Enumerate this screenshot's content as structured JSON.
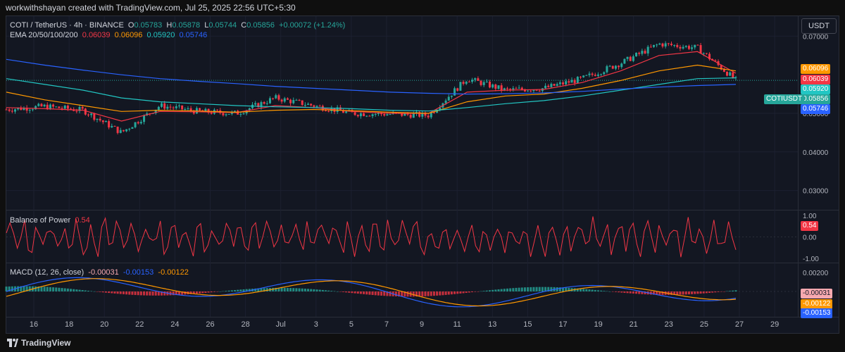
{
  "header": {
    "attribution": "workwithshayan created with TradingView.com, Jul 25, 2025 22:56 UTC+5:30"
  },
  "legend": {
    "symbol": "COTI / TetherUS · 4h · BINANCE",
    "open_label": "O",
    "open": "0.05783",
    "high_label": "H",
    "high": "0.05878",
    "low_label": "L",
    "low": "0.05744",
    "close_label": "C",
    "close": "0.05856",
    "change": "+0.00072 (+1.24%)",
    "ema_label": "EMA 20/50/100/200",
    "ema20": "0.06039",
    "ema50": "0.06096",
    "ema100": "0.05920",
    "ema200": "0.05746"
  },
  "currency_button": "USDT",
  "price_axis": {
    "ticks": [
      "0.07000",
      "0.05000",
      "0.04000",
      "0.03000"
    ],
    "tags": [
      {
        "value": "0.06096",
        "color": "#ff9800"
      },
      {
        "value": "0.06039",
        "color": "#f23645"
      },
      {
        "value": "0.05920",
        "color": "#22c6c3"
      },
      {
        "value": "0.05856",
        "color": "#26a69a"
      },
      {
        "value": "0.05746",
        "color": "#2962ff"
      }
    ],
    "symbol_tag": "COTIUSDT"
  },
  "bop": {
    "label": "Balance of Power",
    "value": "0.54",
    "ticks": [
      "1.00",
      "0.00",
      "-1.00"
    ],
    "color": "#f23645"
  },
  "macd": {
    "label": "MACD (12, 26, close)",
    "hist": "-0.00031",
    "macd": "-0.00153",
    "signal": "-0.00122",
    "ticks": [
      "0.00200"
    ],
    "tags": [
      {
        "value": "-0.00031",
        "color": "#f7a9b0",
        "text": "#131722"
      },
      {
        "value": "-0.00122",
        "color": "#ff9800",
        "text": "#ffffff"
      },
      {
        "value": "-0.00153",
        "color": "#2962ff",
        "text": "#ffffff"
      }
    ]
  },
  "time_axis": [
    "16",
    "18",
    "20",
    "22",
    "24",
    "26",
    "28",
    "Jul",
    "3",
    "5",
    "7",
    "9",
    "11",
    "13",
    "15",
    "17",
    "19",
    "21",
    "23",
    "25",
    "27",
    "29"
  ],
  "footer": {
    "brand": "TradingView"
  },
  "chart_data": {
    "type": "line",
    "title": "COTI / TetherUS · 4h · BINANCE",
    "x": [
      "16",
      "18",
      "20",
      "22",
      "24",
      "26",
      "28",
      "Jul",
      "3",
      "5",
      "7",
      "9",
      "11",
      "13",
      "15",
      "17",
      "19",
      "21",
      "23",
      "25"
    ],
    "series": [
      {
        "name": "COTIUSDT",
        "values": [
          0.051,
          0.0518,
          0.0508,
          0.045,
          0.052,
          0.0505,
          0.05,
          0.054,
          0.052,
          0.05,
          0.0498,
          0.0495,
          0.059,
          0.056,
          0.0565,
          0.059,
          0.063,
          0.068,
          0.067,
          0.0586
        ]
      },
      {
        "name": "EMA 20",
        "values": [
          0.0515,
          0.0512,
          0.0508,
          0.048,
          0.0505,
          0.0504,
          0.0502,
          0.052,
          0.0515,
          0.0505,
          0.05,
          0.05,
          0.0555,
          0.056,
          0.0562,
          0.058,
          0.061,
          0.065,
          0.066,
          0.0604
        ]
      },
      {
        "name": "EMA 50",
        "values": [
          0.0555,
          0.0535,
          0.052,
          0.0505,
          0.0508,
          0.0506,
          0.0503,
          0.0508,
          0.051,
          0.0507,
          0.0503,
          0.05,
          0.053,
          0.0545,
          0.055,
          0.0565,
          0.0585,
          0.061,
          0.0625,
          0.061
        ]
      },
      {
        "name": "EMA 100",
        "values": [
          0.059,
          0.0575,
          0.056,
          0.054,
          0.053,
          0.0525,
          0.052,
          0.0517,
          0.0515,
          0.0512,
          0.0508,
          0.0506,
          0.0515,
          0.0525,
          0.0533,
          0.0545,
          0.056,
          0.0575,
          0.059,
          0.0592
        ]
      },
      {
        "name": "EMA 200",
        "values": [
          0.064,
          0.0625,
          0.0612,
          0.06,
          0.059,
          0.0583,
          0.0577,
          0.057,
          0.0565,
          0.056,
          0.0555,
          0.0552,
          0.055,
          0.0551,
          0.0553,
          0.0557,
          0.0563,
          0.0568,
          0.0572,
          0.0575
        ]
      }
    ],
    "ylim": [
      0.025,
      0.075
    ],
    "grid": true
  }
}
